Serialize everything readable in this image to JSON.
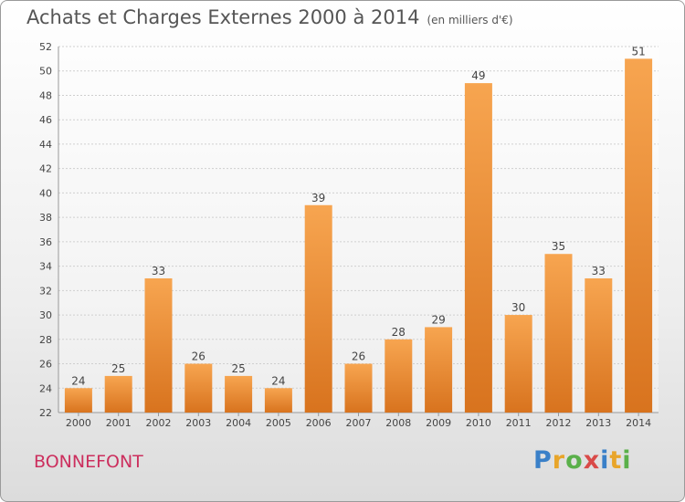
{
  "chart_data": {
    "type": "bar",
    "title": "Achats et Charges Externes 2000 à 2014",
    "subtitle": "(en milliers d'€)",
    "categories": [
      "2000",
      "2001",
      "2002",
      "2003",
      "2004",
      "2005",
      "2006",
      "2007",
      "2008",
      "2009",
      "2010",
      "2011",
      "2012",
      "2013",
      "2014"
    ],
    "values": [
      24,
      25,
      33,
      26,
      25,
      24,
      39,
      26,
      28,
      29,
      49,
      30,
      35,
      33,
      51
    ],
    "ylim": [
      22,
      52
    ],
    "yticks": [
      22,
      24,
      26,
      28,
      30,
      32,
      34,
      36,
      38,
      40,
      42,
      44,
      46,
      48,
      50,
      52
    ],
    "grid": true,
    "bar_color": "#f0923a"
  },
  "location": "BONNEFONT",
  "logo": {
    "p": "P",
    "r": "r",
    "o": "o",
    "x": "x",
    "i1": "i",
    "t": "t",
    "i2": "i"
  }
}
